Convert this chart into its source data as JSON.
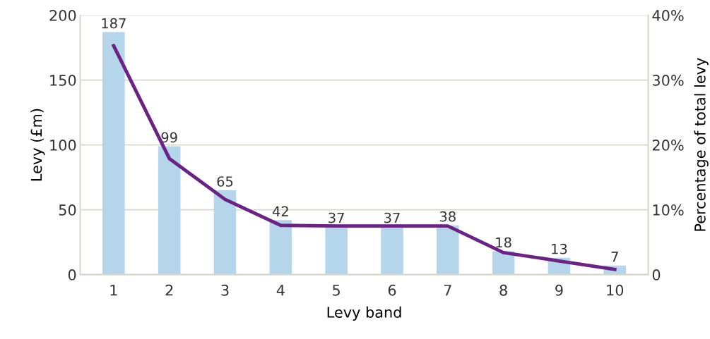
{
  "chart_data": {
    "type": "bar",
    "categories": [
      "1",
      "2",
      "3",
      "4",
      "5",
      "6",
      "7",
      "8",
      "9",
      "10"
    ],
    "xlabel": "Levy band",
    "ylabel": "Levy (£m)",
    "y2label": "Percentage of total levy",
    "series": [
      {
        "color": "#b4d5ea",
        "values": [
          187,
          99,
          65,
          42,
          37,
          37,
          38,
          18,
          13,
          7
        ],
        "value_labels": [
          "187",
          "99",
          "65",
          "42",
          "37",
          "37",
          "38",
          "18",
          "13",
          "7"
        ]
      },
      {
        "type": "line",
        "axis": "y2",
        "color": "#6a2383",
        "values": [
          35.3,
          17.9,
          11.6,
          7.6,
          7.5,
          7.5,
          7.5,
          3.4,
          2.1,
          0.8
        ]
      }
    ],
    "ylim": [
      0,
      200
    ],
    "yticks": [
      0,
      50,
      100,
      150,
      200
    ],
    "y2lim": [
      0,
      40
    ],
    "y2ticks": [
      0,
      {
        "value": 10,
        "label": "10%"
      },
      {
        "value": 20,
        "label": "20%"
      },
      {
        "value": 30,
        "label": "30%"
      },
      {
        "value": 40,
        "label": "40%"
      }
    ],
    "grid": "y",
    "line_style": "solid",
    "marker": "none"
  }
}
